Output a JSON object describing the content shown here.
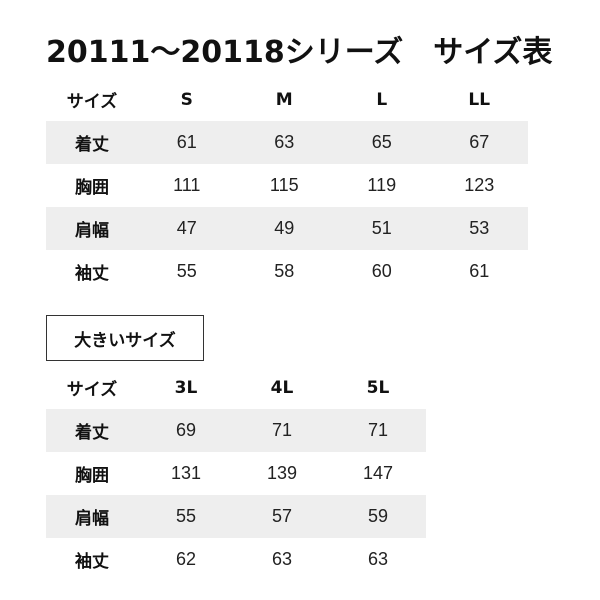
{
  "title": "20111〜20118シリーズ　サイズ表",
  "main_table": {
    "header": [
      "サイズ",
      "S",
      "M",
      "L",
      "LL"
    ],
    "rows": [
      [
        "着丈",
        "61",
        "63",
        "65",
        "67"
      ],
      [
        "胸囲",
        "111",
        "115",
        "119",
        "123"
      ],
      [
        "肩幅",
        "47",
        "49",
        "51",
        "53"
      ],
      [
        "袖丈",
        "55",
        "58",
        "60",
        "61"
      ]
    ]
  },
  "large_section_label": "大きいサイズ",
  "large_table": {
    "header": [
      "サイズ",
      "3L",
      "4L",
      "5L"
    ],
    "rows": [
      [
        "着丈",
        "69",
        "71",
        "71"
      ],
      [
        "胸囲",
        "131",
        "139",
        "147"
      ],
      [
        "肩幅",
        "55",
        "57",
        "59"
      ],
      [
        "袖丈",
        "62",
        "63",
        "63"
      ]
    ]
  },
  "colors": {
    "shaded_row": "#eeeeee",
    "text": "#111111"
  }
}
